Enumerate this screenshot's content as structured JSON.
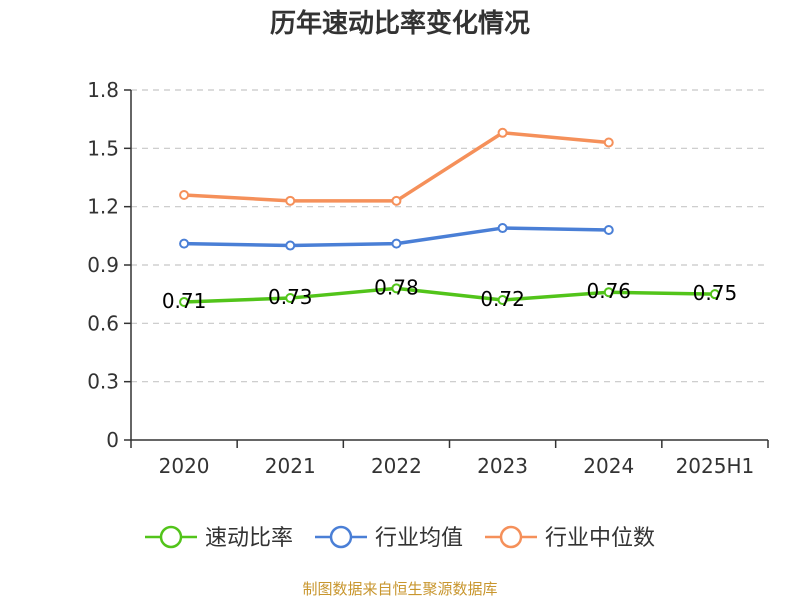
{
  "chart_data": {
    "type": "line",
    "title": "历年速动比率变化情况",
    "xlabel": "",
    "ylabel": "",
    "categories": [
      "2020",
      "2021",
      "2022",
      "2023",
      "2024",
      "2025H1"
    ],
    "ylim": [
      0,
      1.8
    ],
    "yticks": [
      "0",
      "0.3",
      "0.6",
      "0.9",
      "1.2",
      "1.5",
      "1.8"
    ],
    "grid": true,
    "legend_position": "bottom",
    "series": [
      {
        "name": "速动比率",
        "color": "#52c41a",
        "values": [
          0.71,
          0.73,
          0.78,
          0.72,
          0.76,
          0.75
        ],
        "labels": [
          "0.71",
          "0.73",
          "0.78",
          "0.72",
          "0.76",
          "0.75"
        ]
      },
      {
        "name": "行业均值",
        "color": "#4a7fd6",
        "values": [
          1.01,
          1.0,
          1.01,
          1.09,
          1.08,
          null
        ]
      },
      {
        "name": "行业中位数",
        "color": "#f5905a",
        "values": [
          1.26,
          1.23,
          1.23,
          1.58,
          1.53,
          null
        ]
      }
    ]
  },
  "footer": {
    "source": "制图数据来自恒生聚源数据库"
  }
}
